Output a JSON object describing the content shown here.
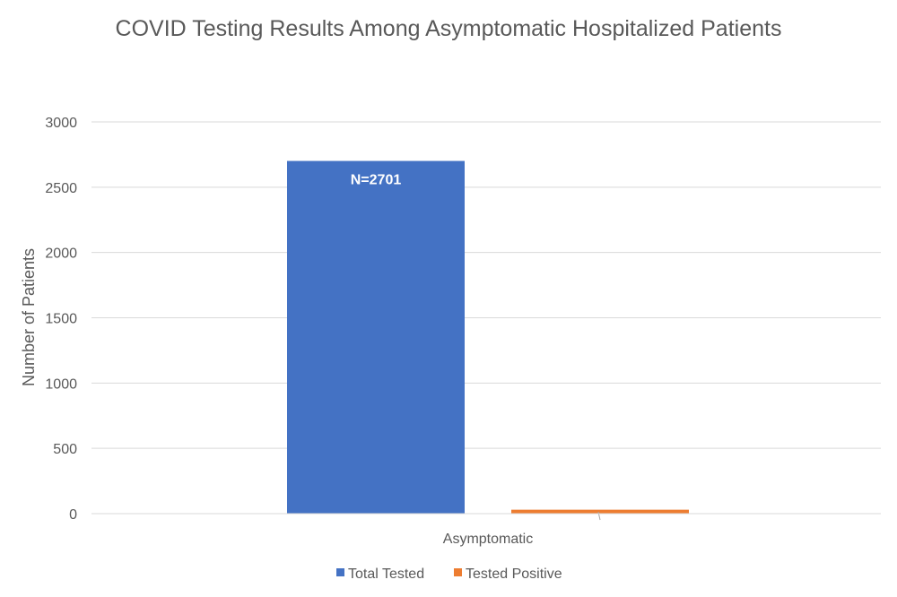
{
  "chart_data": {
    "type": "bar",
    "title": "COVID Testing Results Among Asymptomatic Hospitalized Patients",
    "xlabel": "",
    "ylabel": "Number of Patients",
    "categories": [
      "Asymptomatic"
    ],
    "series": [
      {
        "name": "Total Tested",
        "values": [
          2701
        ],
        "color": "#4472C4",
        "data_label": "N=2701"
      },
      {
        "name": "Tested Positive",
        "values": [
          30
        ],
        "color": "#ED7D31",
        "data_label": ""
      }
    ],
    "ylim": [
      0,
      3000
    ],
    "yticks": [
      0,
      500,
      1000,
      1500,
      2000,
      2500,
      3000
    ],
    "grid": true,
    "legend_position": "bottom"
  }
}
